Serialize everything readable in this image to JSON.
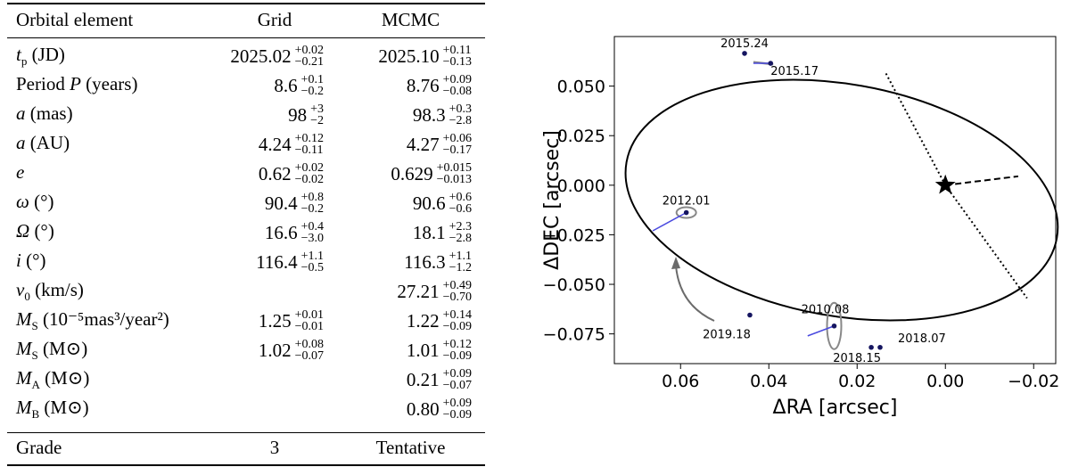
{
  "table": {
    "headers": {
      "element": "Orbital element",
      "grid": "Grid",
      "mcmc": "MCMC"
    },
    "rows": [
      {
        "sym": "t",
        "sub": "p",
        "label": " (JD)",
        "grid": {
          "v": "2025.02",
          "p": "+0.02",
          "m": "−0.21"
        },
        "mcmc": {
          "v": "2025.10",
          "p": "+0.11",
          "m": "−0.13"
        }
      },
      {
        "sym": "P",
        "pre": "Period ",
        "label": " (years)",
        "grid": {
          "v": "8.6",
          "p": "+0.1",
          "m": "−0.2"
        },
        "mcmc": {
          "v": "8.76",
          "p": "+0.09",
          "m": "−0.08"
        }
      },
      {
        "sym": "a",
        "label": " (mas)",
        "grid": {
          "v": "98",
          "p": "+3",
          "m": "−2"
        },
        "mcmc": {
          "v": "98.3",
          "p": "+0.3",
          "m": "−2.8"
        }
      },
      {
        "sym": "a",
        "label": " (AU)",
        "grid": {
          "v": "4.24",
          "p": "+0.12",
          "m": "−0.11"
        },
        "mcmc": {
          "v": "4.27",
          "p": "+0.06",
          "m": "−0.17"
        }
      },
      {
        "sym": "e",
        "label": "",
        "grid": {
          "v": "0.62",
          "p": "+0.02",
          "m": "−0.02"
        },
        "mcmc": {
          "v": "0.629",
          "p": "+0.015",
          "m": "−0.013"
        }
      },
      {
        "sym": "ω",
        "label": " (°)",
        "grid": {
          "v": "90.4",
          "p": "+0.8",
          "m": "−0.2"
        },
        "mcmc": {
          "v": "90.6",
          "p": "+0.6",
          "m": "−0.6"
        }
      },
      {
        "sym": "Ω",
        "label": " (°)",
        "grid": {
          "v": "16.6",
          "p": "+0.4",
          "m": "−3.0"
        },
        "mcmc": {
          "v": "18.1",
          "p": "+2.3",
          "m": "−2.8"
        }
      },
      {
        "sym": "i",
        "label": " (°)",
        "grid": {
          "v": "116.4",
          "p": "+1.1",
          "m": "−0.5"
        },
        "mcmc": {
          "v": "116.3",
          "p": "+1.1",
          "m": "−1.2"
        }
      },
      {
        "sym": "v",
        "sub": "0",
        "label": " (km/s)",
        "grid": null,
        "mcmc": {
          "v": "27.21",
          "p": "+0.49",
          "m": "−0.70"
        }
      },
      {
        "sym": "M",
        "sub": "S",
        "label": " (10⁻⁵mas³/year²)",
        "grid": {
          "v": "1.25",
          "p": "+0.01",
          "m": "−0.01"
        },
        "mcmc": {
          "v": "1.22",
          "p": "+0.14",
          "m": "−0.09"
        }
      },
      {
        "sym": "M",
        "sub": "S",
        "label": " (M⊙)",
        "grid": {
          "v": "1.02",
          "p": "+0.08",
          "m": "−0.07"
        },
        "mcmc": {
          "v": "1.01",
          "p": "+0.12",
          "m": "−0.09"
        }
      },
      {
        "sym": "M",
        "sub": "A",
        "label": " (M⊙)",
        "grid": null,
        "mcmc": {
          "v": "0.21",
          "p": "+0.09",
          "m": "−0.07"
        }
      },
      {
        "sym": "M",
        "sub": "B",
        "label": " (M⊙)",
        "grid": null,
        "mcmc": {
          "v": "0.80",
          "p": "+0.09",
          "m": "−0.09"
        }
      }
    ],
    "grade": {
      "label": "Grade",
      "grid": "3",
      "mcmc": "Tentative"
    }
  },
  "chart_data": {
    "type": "scatter",
    "xlabel": "ΔRA [arcsec]",
    "ylabel": "ΔDEC [arcsec]",
    "xlim": [
      0.075,
      -0.025
    ],
    "ylim": [
      -0.09,
      0.075
    ],
    "xticks": [
      0.06,
      0.04,
      0.02,
      0.0,
      -0.02
    ],
    "xtick_labels": [
      "0.06",
      "0.04",
      "0.02",
      "0.00",
      "−0.02"
    ],
    "yticks": [
      0.05,
      0.025,
      0.0,
      -0.025,
      -0.05,
      -0.075
    ],
    "ytick_labels": [
      "0.050",
      "0.025",
      "0.000",
      "−0.025",
      "−0.050",
      "−0.075"
    ],
    "star": {
      "x": 0.0,
      "y": 0.0
    },
    "points": [
      {
        "label": "2015.24",
        "x": 0.0455,
        "y": 0.0665,
        "fx": 0.0455,
        "fy": 0.0665
      },
      {
        "label": "2015.17",
        "x": 0.0396,
        "y": 0.0615,
        "fx": 0.0435,
        "fy": 0.0615
      },
      {
        "label": "2012.01",
        "x": 0.0587,
        "y": -0.0138,
        "fx": 0.0663,
        "fy": -0.023
      },
      {
        "label": "2019.18",
        "x": 0.0443,
        "y": -0.0655,
        "fx": 0.0443,
        "fy": -0.0655
      },
      {
        "label": "2010.08",
        "x": 0.0252,
        "y": -0.071,
        "fx": 0.0312,
        "fy": -0.076
      },
      {
        "label": "2018.15",
        "x": 0.0168,
        "y": -0.0818,
        "fx": 0.0168,
        "fy": -0.0818
      },
      {
        "label": "2018.07",
        "x": 0.0148,
        "y": -0.0818,
        "fx": 0.0148,
        "fy": -0.0818
      }
    ],
    "orbit": {
      "cx": 0.0235,
      "cy": -0.0075,
      "a": 0.0495,
      "b": 0.0585,
      "angle_deg": 10
    }
  }
}
